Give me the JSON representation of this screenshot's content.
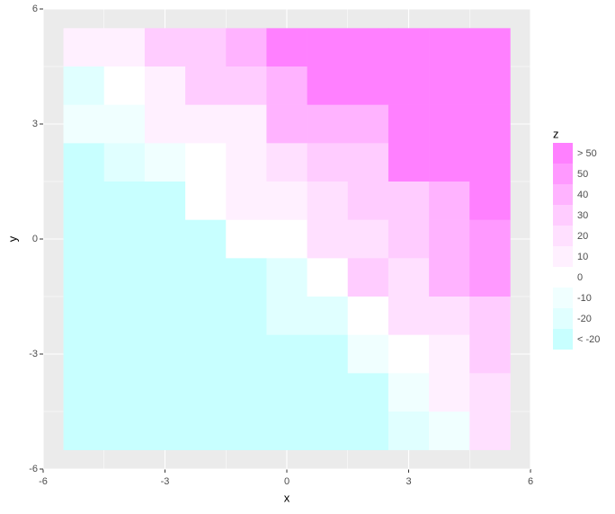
{
  "chart_data": {
    "type": "heatmap",
    "x_label": "x",
    "y_label": "y",
    "x": [
      -5,
      -4,
      -3,
      -2,
      -1,
      0,
      1,
      2,
      3,
      4,
      5
    ],
    "y": [
      5,
      4,
      3,
      2,
      1,
      0,
      -1,
      -2,
      -3,
      -4,
      -5
    ],
    "z": [
      [
        8,
        8,
        28,
        28,
        38,
        60,
        60,
        60,
        60,
        60,
        60
      ],
      [
        -18,
        -3,
        8,
        28,
        28,
        38,
        60,
        60,
        60,
        60,
        60
      ],
      [
        -12,
        -12,
        8,
        8,
        8,
        38,
        38,
        38,
        60,
        60,
        60
      ],
      [
        -30,
        -18,
        -12,
        3,
        8,
        18,
        28,
        28,
        60,
        60,
        60
      ],
      [
        -30,
        -30,
        -30,
        -3,
        8,
        8,
        18,
        28,
        28,
        38,
        60
      ],
      [
        -30,
        -30,
        -30,
        -30,
        -3,
        -3,
        18,
        18,
        28,
        38,
        48
      ],
      [
        -30,
        -30,
        -30,
        -30,
        -30,
        -18,
        -3,
        28,
        18,
        38,
        48
      ],
      [
        -30,
        -30,
        -30,
        -30,
        -30,
        -18,
        -18,
        -3,
        18,
        18,
        28
      ],
      [
        -30,
        -30,
        -30,
        -30,
        -30,
        -30,
        -30,
        -12,
        -3,
        8,
        28
      ],
      [
        -30,
        -30,
        -30,
        -30,
        -30,
        -30,
        -30,
        -30,
        -12,
        8,
        18
      ],
      [
        -30,
        -30,
        -30,
        -30,
        -30,
        -30,
        -30,
        -30,
        -18,
        -12,
        18
      ]
    ],
    "xlim": [
      -6,
      6
    ],
    "xticks": [
      -6,
      -3,
      0,
      3,
      6
    ],
    "ylim": [
      -6,
      6
    ],
    "yticks": [
      -6,
      -3,
      0,
      3,
      6
    ],
    "legend": {
      "title": "z",
      "labels": [
        "> 50",
        50,
        40,
        30,
        20,
        10,
        0,
        -10,
        -20,
        "< -20"
      ],
      "colors": [
        "#ff80ff",
        "#ff99ff",
        "#ffb3ff",
        "#ffccff",
        "#ffe0ff",
        "#fff0ff",
        "#ffffff",
        "#f0ffff",
        "#e0ffff",
        "#c8ffff"
      ]
    }
  }
}
